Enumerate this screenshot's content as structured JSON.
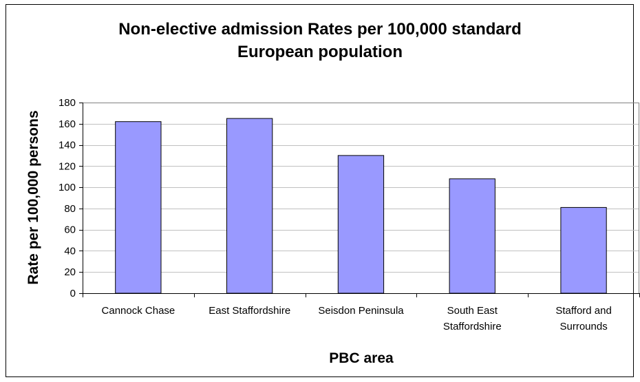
{
  "chart_data": {
    "type": "bar",
    "title_lines": [
      "Non-elective admission Rates per 100,000 standard",
      "European population"
    ],
    "xlabel": "PBC area",
    "ylabel": "Rate per 100,000 persons",
    "categories": [
      [
        "Cannock Chase"
      ],
      [
        "East Staffordshire"
      ],
      [
        "Seisdon Peninsula"
      ],
      [
        "South East",
        "Staffordshire"
      ],
      [
        "Stafford and",
        "Surrounds"
      ]
    ],
    "values": [
      162,
      165,
      130,
      108,
      81
    ],
    "ylim": [
      0,
      180
    ],
    "yticks": [
      0,
      20,
      40,
      60,
      80,
      100,
      120,
      140,
      160,
      180
    ],
    "grid": true,
    "legend": "none",
    "colors": {
      "bar_fill": "#9999ff",
      "bar_stroke": "#000000",
      "grid": "#c0c0c0",
      "plot_border": "#808080",
      "axis": "#000000"
    }
  }
}
